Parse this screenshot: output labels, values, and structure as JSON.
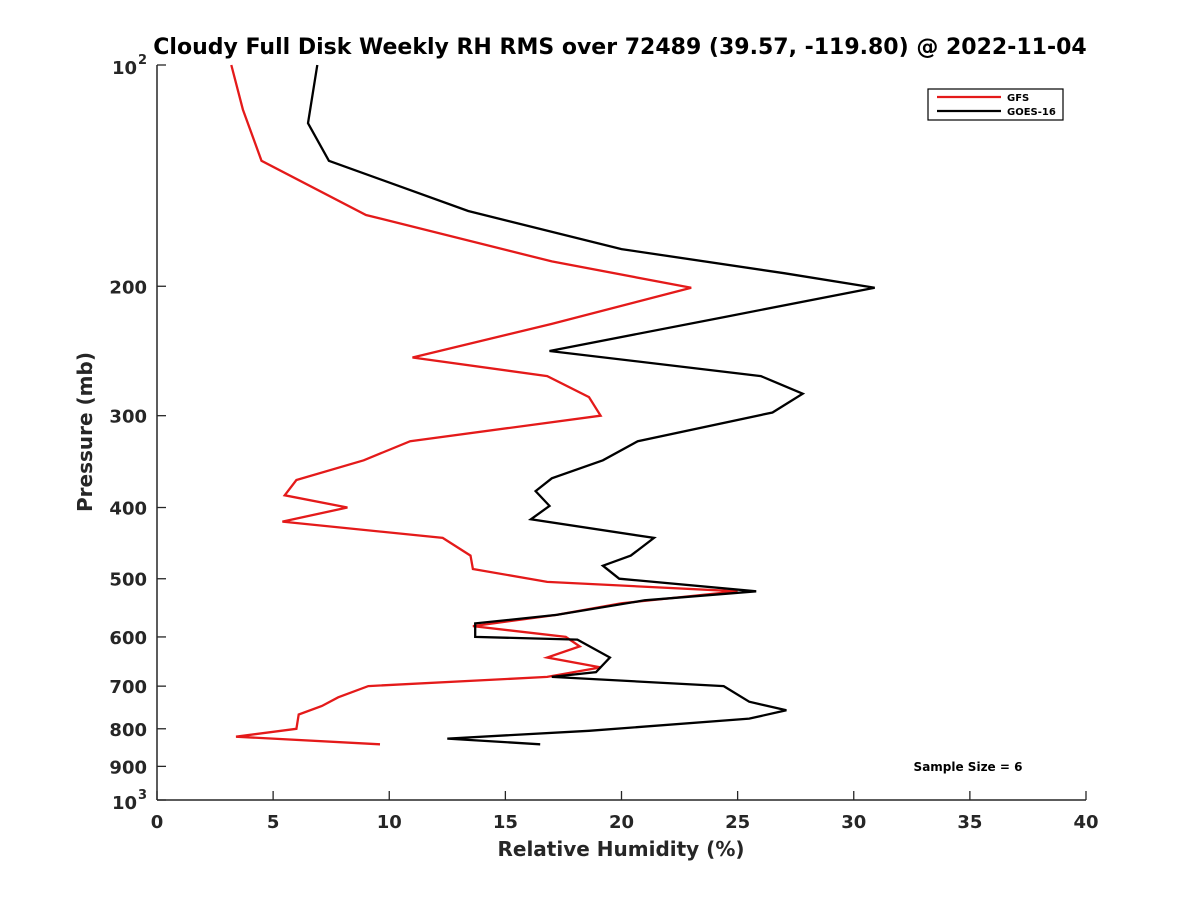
{
  "chart_data": {
    "type": "line",
    "title": "Cloudy Full Disk Weekly RH RMS over 72489 (39.57, -119.80) @ 2022-11-04",
    "xlabel": "Relative Humidity (%)",
    "ylabel": "Pressure (mb)",
    "xlim": [
      0,
      40
    ],
    "ylim": [
      100,
      1000
    ],
    "y_scale": "log",
    "y_reversed": true,
    "grid": false,
    "legend_position": "top-right",
    "x_ticks": [
      "0",
      "5",
      "10",
      "15",
      "20",
      "25",
      "30",
      "35",
      "40"
    ],
    "x_tick_values": [
      0,
      5,
      10,
      15,
      20,
      25,
      30,
      35,
      40
    ],
    "y_ticks": [
      {
        "value": 100,
        "label": "10",
        "exp": "2"
      },
      {
        "value": 200,
        "label": "200",
        "exp": ""
      },
      {
        "value": 300,
        "label": "300",
        "exp": ""
      },
      {
        "value": 400,
        "label": "400",
        "exp": ""
      },
      {
        "value": 500,
        "label": "500",
        "exp": ""
      },
      {
        "value": 600,
        "label": "600",
        "exp": ""
      },
      {
        "value": 700,
        "label": "700",
        "exp": ""
      },
      {
        "value": 800,
        "label": "800",
        "exp": ""
      },
      {
        "value": 900,
        "label": "900",
        "exp": ""
      },
      {
        "value": 1000,
        "label": "10",
        "exp": "3"
      }
    ],
    "series": [
      {
        "name": "GFS",
        "color": "#e41a1a",
        "points": [
          [
            3.2,
            100
          ],
          [
            3.7,
            115
          ],
          [
            4.5,
            135
          ],
          [
            9.0,
            160
          ],
          [
            17.0,
            185
          ],
          [
            23.0,
            201
          ],
          [
            17.0,
            225
          ],
          [
            11.0,
            250
          ],
          [
            16.8,
            265
          ],
          [
            18.6,
            283
          ],
          [
            19.1,
            300
          ],
          [
            10.9,
            325
          ],
          [
            8.9,
            345
          ],
          [
            6.0,
            367
          ],
          [
            5.5,
            385
          ],
          [
            8.2,
            400
          ],
          [
            5.4,
            418
          ],
          [
            12.3,
            440
          ],
          [
            13.5,
            465
          ],
          [
            13.6,
            485
          ],
          [
            16.8,
            505
          ],
          [
            25.0,
            520
          ],
          [
            20.0,
            540
          ],
          [
            17.2,
            560
          ],
          [
            13.6,
            580
          ],
          [
            17.6,
            600
          ],
          [
            18.2,
            618
          ],
          [
            16.8,
            640
          ],
          [
            19.1,
            660
          ],
          [
            16.8,
            680
          ],
          [
            9.1,
            700
          ],
          [
            7.8,
            725
          ],
          [
            7.1,
            745
          ],
          [
            6.1,
            765
          ],
          [
            6.0,
            800
          ],
          [
            3.4,
            820
          ],
          [
            9.6,
            840
          ]
        ]
      },
      {
        "name": "GOES-16",
        "color": "#000000",
        "points": [
          [
            6.9,
            100
          ],
          [
            6.5,
            120
          ],
          [
            7.4,
            135
          ],
          [
            13.4,
            158
          ],
          [
            20.0,
            178
          ],
          [
            27.0,
            192
          ],
          [
            30.9,
            201
          ],
          [
            24.5,
            220
          ],
          [
            16.9,
            245
          ],
          [
            26.0,
            265
          ],
          [
            27.8,
            280
          ],
          [
            26.5,
            297
          ],
          [
            20.7,
            325
          ],
          [
            19.2,
            345
          ],
          [
            17.0,
            365
          ],
          [
            16.3,
            380
          ],
          [
            16.9,
            398
          ],
          [
            16.1,
            415
          ],
          [
            21.4,
            440
          ],
          [
            20.4,
            465
          ],
          [
            19.2,
            480
          ],
          [
            19.9,
            500
          ],
          [
            25.8,
            520
          ],
          [
            21.0,
            535
          ],
          [
            17.2,
            560
          ],
          [
            13.7,
            575
          ],
          [
            13.7,
            600
          ],
          [
            18.1,
            605
          ],
          [
            19.5,
            640
          ],
          [
            18.9,
            670
          ],
          [
            17.0,
            680
          ],
          [
            24.4,
            700
          ],
          [
            25.5,
            735
          ],
          [
            27.1,
            755
          ],
          [
            25.5,
            775
          ],
          [
            18.6,
            805
          ],
          [
            12.5,
            825
          ],
          [
            16.5,
            840
          ]
        ]
      }
    ],
    "annotations": [
      "Sample Size = 6"
    ]
  }
}
